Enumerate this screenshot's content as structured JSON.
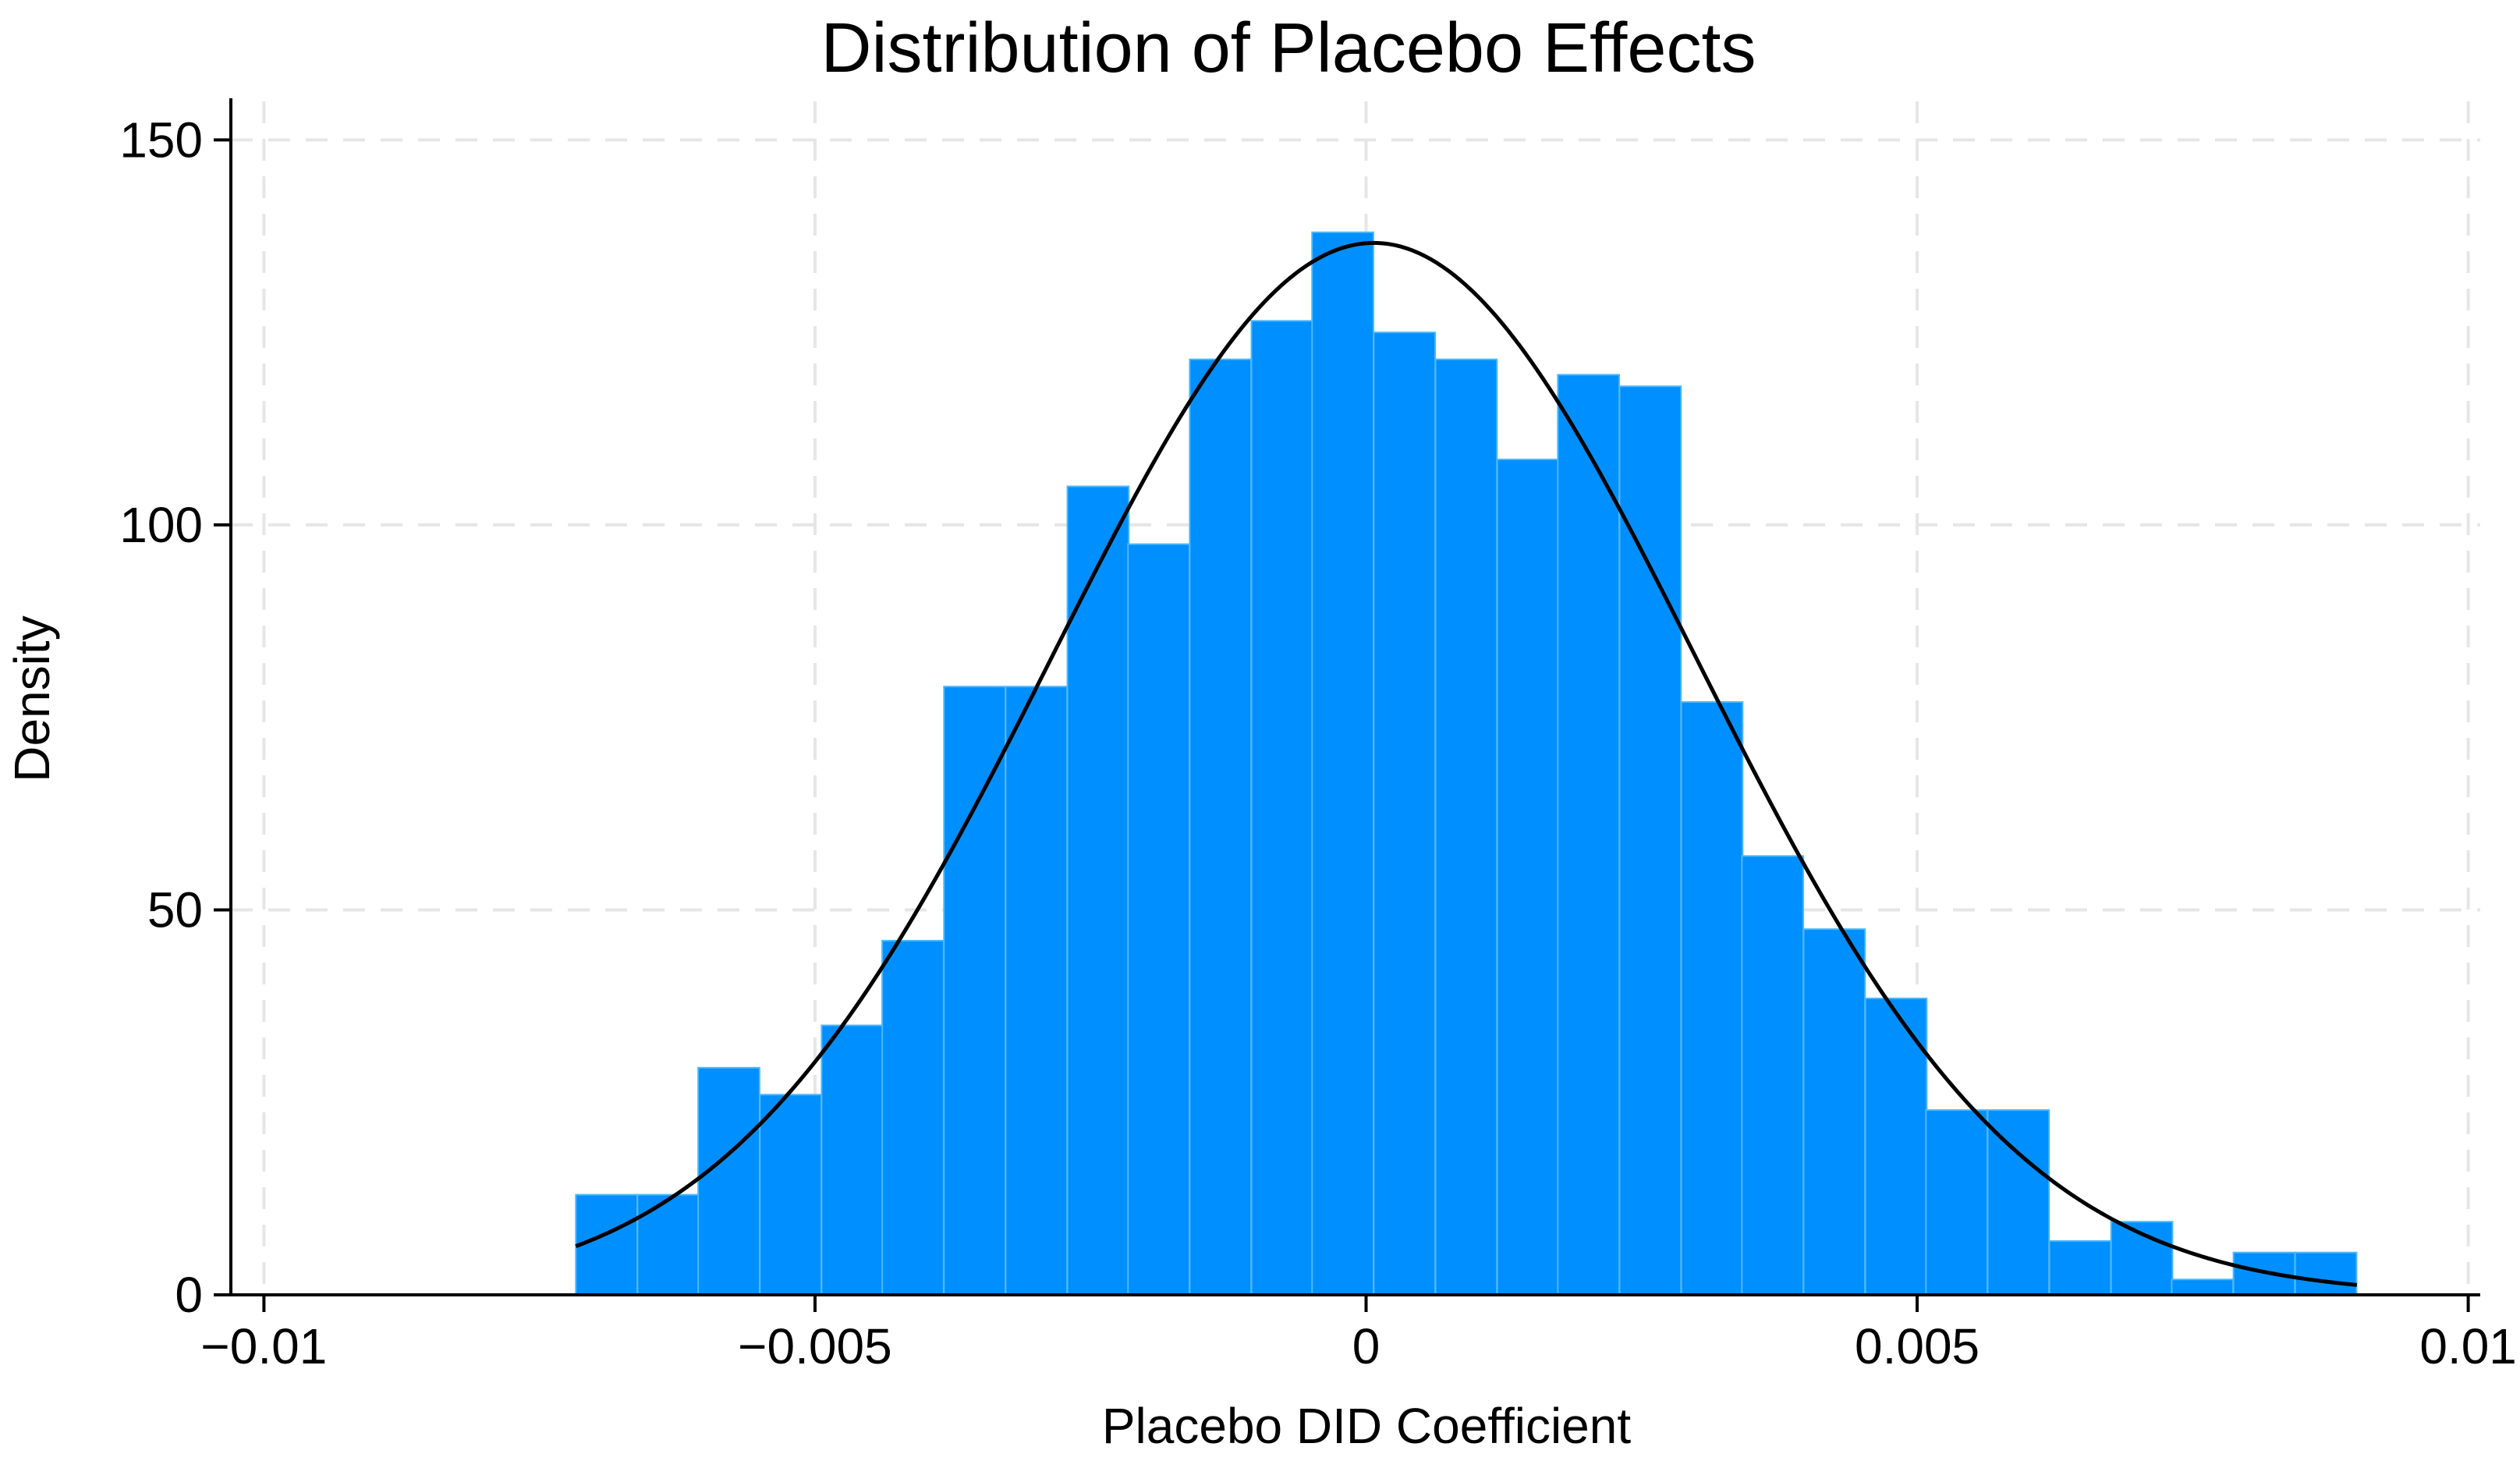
{
  "chart_data": {
    "type": "bar",
    "title": "Distribution of Placebo Effects",
    "xlabel": "Placebo DID Coefficient",
    "ylabel": "Density",
    "xlim": [
      -0.0103,
      0.0103
    ],
    "ylim": [
      0,
      155
    ],
    "grid": true,
    "bar_color": "#008fff",
    "bar_edge_color": "#4db8ff",
    "curve_color": "#000000",
    "x_ticks": [
      -0.01,
      -0.005,
      0,
      0.005,
      0.01
    ],
    "x_tick_labels": [
      "−0.01",
      "−0.005",
      "0",
      "0.005",
      "0.01"
    ],
    "y_ticks": [
      0,
      50,
      100,
      150
    ],
    "y_tick_labels": [
      "0",
      "50",
      "100",
      "150"
    ],
    "bin_width": 0.000557,
    "bin_starts": [
      -0.00717,
      -0.00661,
      -0.00606,
      -0.0055,
      -0.00494,
      -0.00439,
      -0.00383,
      -0.00327,
      -0.00271,
      -0.00216,
      -0.0016,
      -0.00104,
      -0.00049,
      7e-05,
      0.00063,
      0.00119,
      0.00174,
      0.0023,
      0.00286,
      0.00341,
      0.00397,
      0.00453,
      0.00508,
      0.00564,
      0.0062,
      0.00676,
      0.00731,
      0.00787,
      0.00843
    ],
    "values": [
      13,
      13,
      29.5,
      26,
      35,
      46,
      79,
      79,
      105,
      97.5,
      121.5,
      126.5,
      138,
      125,
      121.5,
      108.5,
      119.5,
      118,
      77,
      57,
      47.5,
      38.5,
      24,
      24,
      7,
      9.5,
      2,
      5.5,
      5.5
    ],
    "normal_curve": {
      "mean": 7e-05,
      "sd": 0.00292,
      "x_range": [
        -0.00717,
        0.00899
      ]
    }
  }
}
